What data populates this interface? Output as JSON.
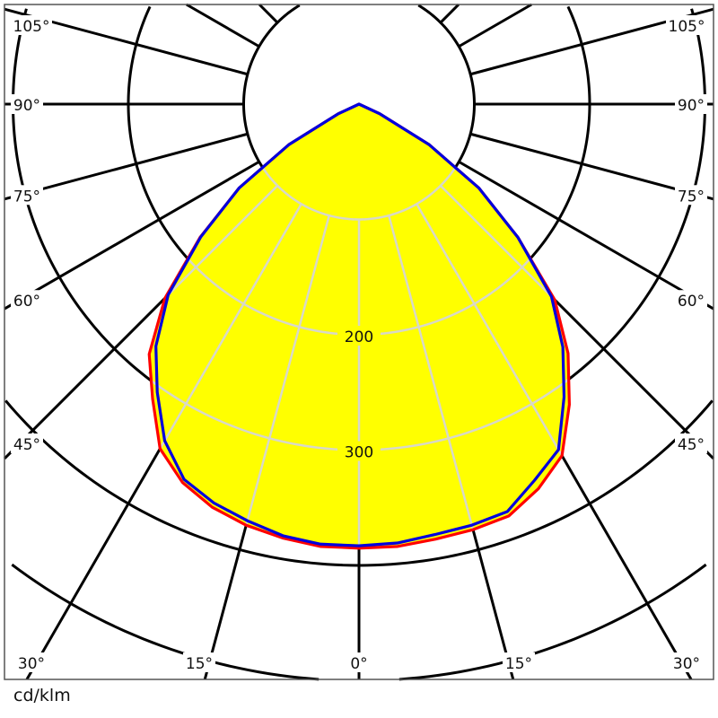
{
  "chart_data": {
    "type": "polar",
    "unit_label": "cd/klm",
    "radial_ticks": [
      100,
      200,
      300,
      400,
      500
    ],
    "radial_tick_labels": [
      "200",
      "300"
    ],
    "angle_tick_labels": [
      "0°",
      "15°",
      "30°",
      "45°",
      "60°",
      "75°",
      "90°",
      "105°"
    ],
    "angles_deg": [
      0,
      5,
      10,
      15,
      20,
      25,
      30,
      35,
      40,
      45,
      50,
      55,
      60,
      65,
      70,
      75,
      80,
      85,
      90
    ],
    "series": [
      {
        "color": "#ff0000",
        "left": [
          385,
          385,
          382,
          378,
          372,
          362,
          345,
          312,
          283,
          238,
          180,
          127,
          70,
          20,
          0,
          0,
          0,
          0,
          0
        ],
        "right": [
          385,
          385,
          383,
          382,
          380,
          368,
          352,
          318,
          282,
          240,
          180,
          127,
          70,
          20,
          0,
          0,
          0,
          0,
          0
        ]
      },
      {
        "color": "#0000dd",
        "left": [
          383,
          383,
          380,
          374,
          368,
          359,
          337,
          305,
          274,
          234,
          179,
          127,
          70,
          20,
          0,
          0,
          0,
          0,
          0
        ],
        "right": [
          383,
          382,
          379,
          378,
          376,
          360,
          346,
          310,
          275,
          236,
          180,
          127,
          70,
          20,
          0,
          0,
          0,
          0,
          0
        ]
      }
    ],
    "fill_color": "#ffff00",
    "grid": true
  }
}
